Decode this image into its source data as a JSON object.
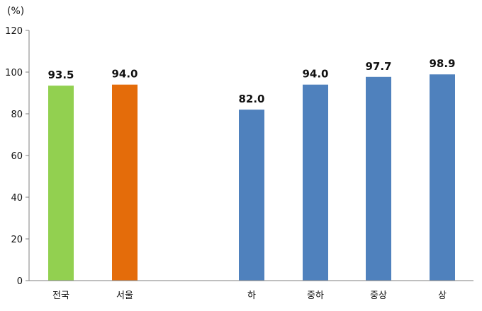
{
  "chart_data": {
    "type": "bar",
    "ylabel": "(%)",
    "ylim": [
      0,
      120
    ],
    "yticks": [
      0,
      20,
      40,
      60,
      80,
      100,
      120
    ],
    "grid": false,
    "legend": "none",
    "categories": [
      "전국",
      "서울",
      "하",
      "중하",
      "중상",
      "상"
    ],
    "values": [
      93.5,
      94.0,
      82.0,
      94.0,
      97.7,
      98.9
    ],
    "value_labels": [
      "93.5",
      "94.0",
      "82.0",
      "94.0",
      "97.7",
      "98.9"
    ],
    "colors": [
      "#92d050",
      "#e46c0a",
      "#4f81bd",
      "#4f81bd",
      "#4f81bd",
      "#4f81bd"
    ]
  }
}
